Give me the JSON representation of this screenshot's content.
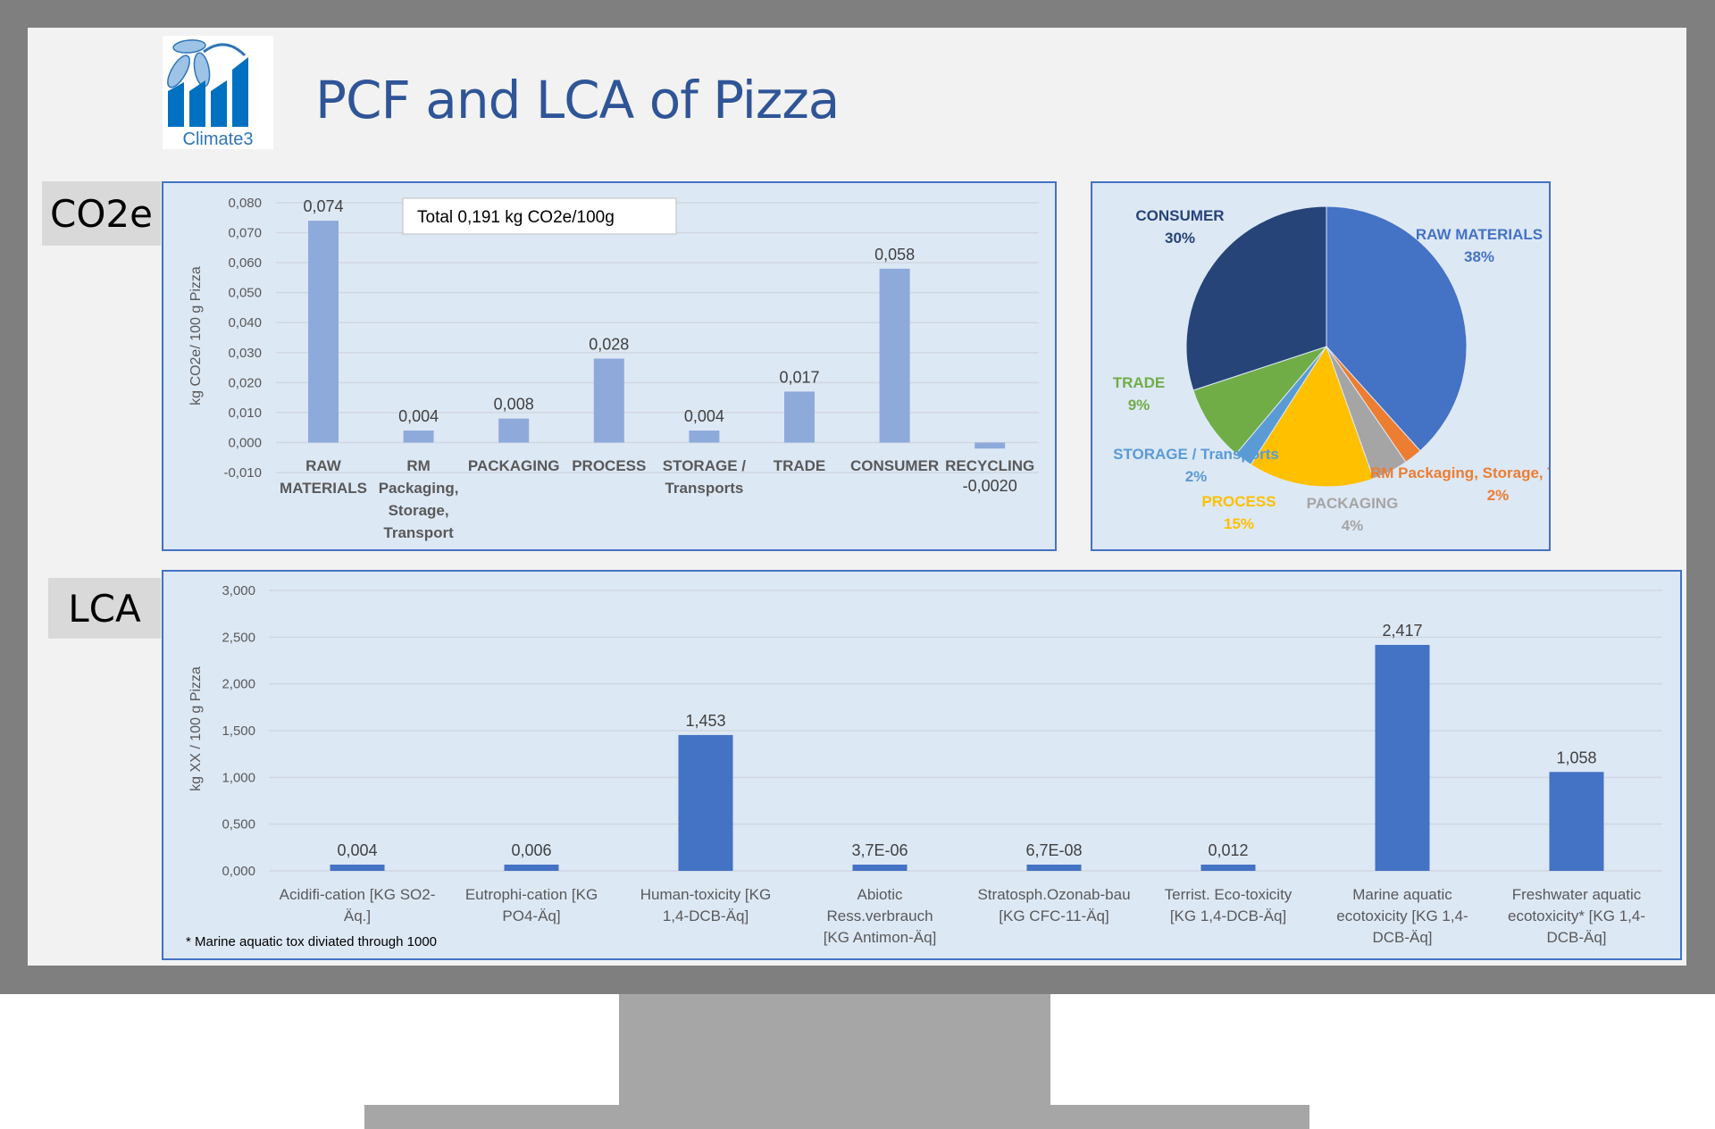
{
  "title": "PCF and LCA of Pizza",
  "logo_text": "Climate3",
  "sections": {
    "co2e": "CO2e",
    "lca": "LCA"
  },
  "colors": {
    "title": "#2f5597",
    "panel_bg": "#dde8f5",
    "panel_border": "#4472c4",
    "co2_bar": "#8eaadb",
    "lca_bar": "#4472c4"
  },
  "chart_data": [
    {
      "type": "bar",
      "title": "",
      "annotation": "Total 0,191 kg CO2e/100g",
      "xlabel": "",
      "ylabel": "kg CO2e/ 100 g Pizza",
      "ylim": [
        -0.01,
        0.08
      ],
      "yticks": [
        "0,080",
        "0,070",
        "0,060",
        "0,050",
        "0,040",
        "0,030",
        "0,020",
        "0,010",
        "0,000",
        "-0,010"
      ],
      "ytick_values": [
        0.08,
        0.07,
        0.06,
        0.05,
        0.04,
        0.03,
        0.02,
        0.01,
        0,
        -0.01
      ],
      "grid": true,
      "categories": [
        [
          "RAW",
          "MATERIALS"
        ],
        [
          "RM",
          "Packaging,",
          "Storage,",
          "Transport"
        ],
        [
          "PACKAGING"
        ],
        [
          "PROCESS"
        ],
        [
          "STORAGE /",
          "Transports"
        ],
        [
          "TRADE"
        ],
        [
          "CONSUMER"
        ],
        [
          "RECYCLING"
        ]
      ],
      "values": [
        0.074,
        0.004,
        0.008,
        0.028,
        0.004,
        0.017,
        0.058,
        -0.002
      ],
      "data_labels": [
        "0,074",
        "0,004",
        "0,008",
        "0,028",
        "0,004",
        "0,017",
        "0,058",
        "-0,0020"
      ]
    },
    {
      "type": "pie",
      "slices": [
        {
          "label": "RAW MATERIALS",
          "pct": "38%",
          "value": 0.074,
          "color": "#4472c4"
        },
        {
          "label": "RM Packaging, Storage, T",
          "pct": "2%",
          "value": 0.004,
          "color": "#ed7d31"
        },
        {
          "label": "PACKAGING",
          "pct": "4%",
          "value": 0.008,
          "color": "#a5a5a5"
        },
        {
          "label": "PROCESS",
          "pct": "15%",
          "value": 0.028,
          "color": "#ffc000"
        },
        {
          "label": "STORAGE / Transports",
          "pct": "2%",
          "value": 0.004,
          "color": "#5b9bd5"
        },
        {
          "label": "TRADE",
          "pct": "9%",
          "value": 0.017,
          "color": "#70ad47"
        },
        {
          "label": "CONSUMER",
          "pct": "30%",
          "value": 0.058,
          "color": "#264478"
        }
      ]
    },
    {
      "type": "bar",
      "title": "",
      "xlabel": "",
      "ylabel": "kg XX / 100 g Pizza",
      "ylim": [
        0,
        3.0
      ],
      "yticks": [
        "3,000",
        "2,500",
        "2,000",
        "1,500",
        "1,000",
        "0,500",
        "0,000"
      ],
      "ytick_values": [
        3.0,
        2.5,
        2.0,
        1.5,
        1.0,
        0.5,
        0
      ],
      "grid": true,
      "categories": [
        [
          "Acidifi-cation [KG SO2-",
          "Äq.]"
        ],
        [
          "Eutrophi-cation [KG",
          "PO4-Äq]"
        ],
        [
          "Human-toxicity [KG",
          "1,4-DCB-Äq]"
        ],
        [
          "Abiotic",
          "Ress.verbrauch",
          "[KG Antimon-Äq]"
        ],
        [
          "Stratosph.Ozonab-bau",
          "[KG CFC-11-Äq]"
        ],
        [
          "Terrist. Eco-toxicity",
          "[KG  1,4-DCB-Äq]"
        ],
        [
          "Marine aquatic",
          "ecotoxicity [KG 1,4-",
          "DCB-Äq]"
        ],
        [
          "Freshwater aquatic",
          "ecotoxicity* [KG  1,4-",
          "DCB-Äq]"
        ]
      ],
      "values": [
        0.004,
        0.006,
        1.453,
        3.7e-06,
        6.7e-08,
        0.012,
        2.417,
        1.058
      ],
      "data_labels": [
        "0,004",
        "0,006",
        "1,453",
        "3,7E-06",
        "6,7E-08",
        "0,012",
        "2,417",
        "1,058"
      ],
      "footnote": "* Marine aquatic tox diviated through 1000"
    }
  ]
}
